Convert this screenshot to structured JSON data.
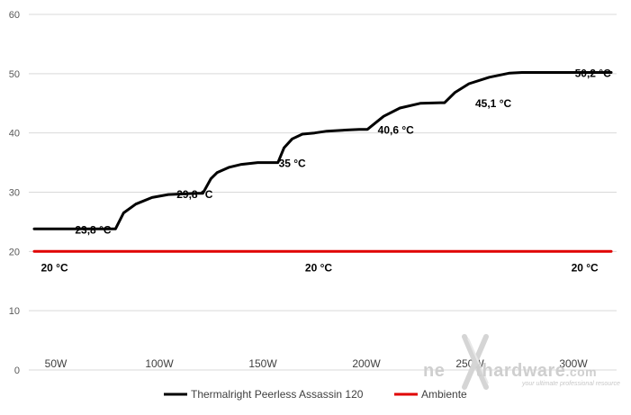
{
  "chart_data": {
    "type": "line",
    "ylim": [
      0,
      60
    ],
    "y_ticks": [
      0,
      10,
      20,
      30,
      40,
      50,
      60
    ],
    "x_categories": [
      "50W",
      "100W",
      "150W",
      "200W",
      "250W",
      "300W"
    ],
    "grid": true,
    "legend_position": "bottom",
    "series": [
      {
        "name": "Thermalright Peerless Assassin 120",
        "color": "#000000",
        "x": [
          0,
          20,
          22,
          25,
          29,
          33,
          40,
          41.5,
          43.5,
          45,
          48,
          51,
          55,
          60,
          61.5,
          63.5,
          66,
          69,
          72,
          77,
          80,
          82,
          86,
          90,
          95,
          100,
          101,
          103.5,
          107,
          112,
          117,
          120,
          121.5,
          124,
          128,
          133,
          138,
          142
        ],
        "y": [
          23.8,
          23.8,
          26.5,
          28,
          29.1,
          29.6,
          29.8,
          29.8,
          32.3,
          33.3,
          34.2,
          34.7,
          35,
          35,
          37.5,
          39,
          39.8,
          40,
          40.3,
          40.5,
          40.6,
          40.6,
          42.8,
          44.2,
          45,
          45.1,
          45.1,
          46.8,
          48.3,
          49.4,
          50.1,
          50.2,
          50.2,
          50.2,
          50.2,
          50.2,
          50.2,
          50.2
        ]
      },
      {
        "name": "Ambiente",
        "color": "#e00000",
        "x": [
          0,
          142
        ],
        "y": [
          20,
          20
        ]
      }
    ],
    "data_labels": [
      {
        "text": "23,8 °C",
        "x": 14.5,
        "y": 23.8,
        "series": 0
      },
      {
        "text": "29,8 °C",
        "x": 39.5,
        "y": 29.8,
        "series": 0
      },
      {
        "text": "35 °C",
        "x": 63.5,
        "y": 35,
        "series": 0
      },
      {
        "text": "40,6 °C",
        "x": 89,
        "y": 40.6,
        "series": 0
      },
      {
        "text": "45,1 °C",
        "x": 113,
        "y": 45.1,
        "series": 0
      },
      {
        "text": "50,2 °C",
        "x": 137.5,
        "y": 50.2,
        "series": 0
      },
      {
        "text": "20 °C",
        "x": 5,
        "y": 20,
        "series": 1
      },
      {
        "text": "20 °C",
        "x": 70,
        "y": 20,
        "series": 1
      },
      {
        "text": "20 °C",
        "x": 135.5,
        "y": 20,
        "series": 1
      }
    ]
  },
  "watermark": {
    "brand_left": "ne",
    "brand_right": "thardware",
    "brand_suffix": ".com",
    "tagline": "your ultimate professional resource"
  }
}
